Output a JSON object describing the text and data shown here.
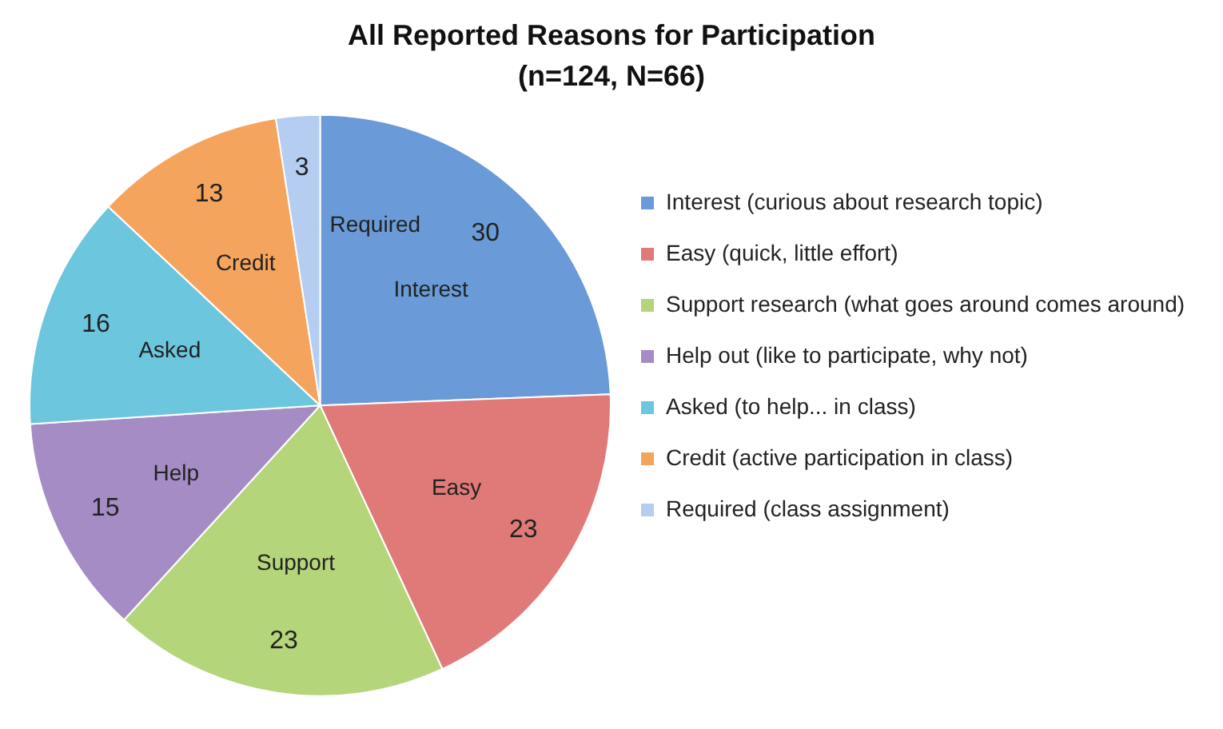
{
  "chart_data": {
    "type": "pie",
    "title": "All Reported Reasons for Participation",
    "subtitle": "(n=124, N=66)",
    "categories": [
      "Interest (curious about research topic)",
      "Easy (quick, little effort)",
      "Support research (what goes around comes around)",
      "Help out (like to participate, why not)",
      "Asked (to help... in class)",
      "Credit (active participation in class)",
      "Required (class assignment)"
    ],
    "values": [
      30,
      23,
      23,
      15,
      16,
      13,
      3
    ],
    "colors": [
      "#6a9bd8",
      "#e07a78",
      "#b5d57a",
      "#a58cc4",
      "#6cc6dd",
      "#f5a45e",
      "#b4cdf0"
    ],
    "data_labels": true,
    "annotations": [
      {
        "text": "Interest",
        "x": "Interest (curious about research topic)"
      },
      {
        "text": "Easy",
        "x": "Easy (quick, little effort)"
      },
      {
        "text": "Support",
        "x": "Support research (what goes around comes around)"
      },
      {
        "text": "Help",
        "x": "Help out (like to participate, why not)"
      },
      {
        "text": "Asked",
        "x": "Asked (to help... in class)"
      },
      {
        "text": "Credit",
        "x": "Credit (active participation in class)"
      },
      {
        "text": "Required",
        "x": "Required (class assignment)"
      }
    ],
    "legend": "right"
  }
}
